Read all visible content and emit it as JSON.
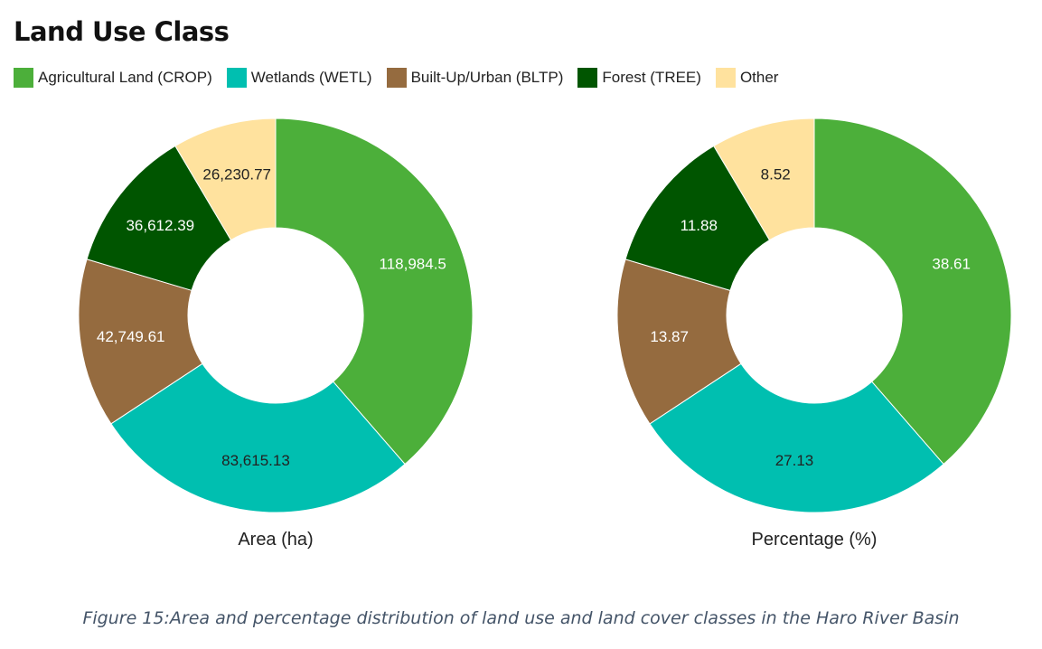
{
  "title": "Land Use Class",
  "legend": [
    {
      "label": "Agricultural Land (CROP)",
      "color": "#4CAF3A"
    },
    {
      "label": "Wetlands (WETL)",
      "color": "#00BFB0"
    },
    {
      "label": "Built-Up/Urban (BLTP)",
      "color": "#956B3F"
    },
    {
      "label": "Forest (TREE)",
      "color": "#005500"
    },
    {
      "label": "Other",
      "color": "#FFE29E"
    }
  ],
  "chart_data": [
    {
      "type": "pie",
      "title": "Area (ha)",
      "categories": [
        "Agricultural Land (CROP)",
        "Wetlands (WETL)",
        "Built-Up/Urban (BLTP)",
        "Forest (TREE)",
        "Other"
      ],
      "values": [
        118984.5,
        83615.13,
        42749.61,
        36612.39,
        26230.77
      ],
      "labels": [
        "118,984.5",
        "83,615.13",
        "42,749.61",
        "36,612.39",
        "26,230.77"
      ],
      "label_colors": [
        "#ffffff",
        "#222222",
        "#ffffff",
        "#ffffff",
        "#222222"
      ]
    },
    {
      "type": "pie",
      "title": "Percentage (%)",
      "categories": [
        "Agricultural Land (CROP)",
        "Wetlands (WETL)",
        "Built-Up/Urban (BLTP)",
        "Forest (TREE)",
        "Other"
      ],
      "values": [
        38.61,
        27.13,
        13.87,
        11.88,
        8.52
      ],
      "labels": [
        "38.61",
        "27.13",
        "13.87",
        "11.88",
        "8.52"
      ],
      "label_colors": [
        "#ffffff",
        "#222222",
        "#ffffff",
        "#ffffff",
        "#222222"
      ]
    }
  ],
  "caption": "Figure 15:Area and percentage distribution of land use and land cover classes in the Haro River Basin"
}
